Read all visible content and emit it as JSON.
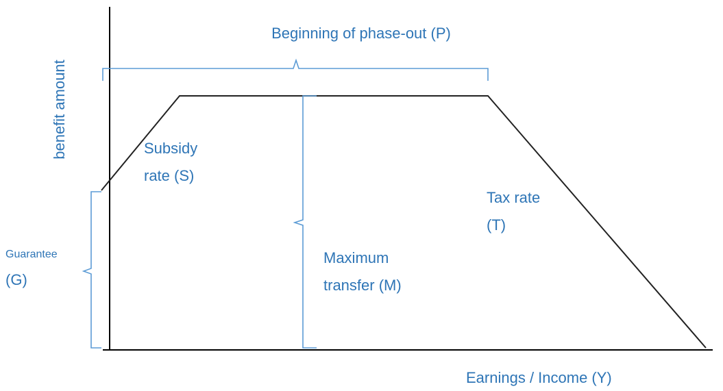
{
  "title": "Beginning of phase-out (P)",
  "y_axis_label": "benefit amount",
  "x_axis_label": "Earnings / Income (Y)",
  "labels": {
    "subsidy": [
      "Subsidy",
      "rate (S)"
    ],
    "tax_rate": [
      "Tax rate",
      "(T)"
    ],
    "maximum_transfer": [
      "Maximum",
      "transfer (M)"
    ],
    "guarantee": [
      "Guarantee",
      "(G)"
    ]
  }
}
